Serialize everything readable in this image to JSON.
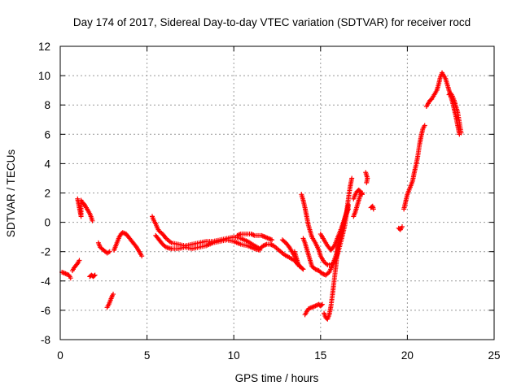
{
  "chart_data": {
    "type": "scatter",
    "title": "Day 174 of 2017, Sidereal Day-to-day VTEC variation (SDTVAR) for receiver rocd",
    "xlabel": "GPS time / hours",
    "ylabel": "SDTVAR / TECUs",
    "xlim": [
      0,
      25
    ],
    "ylim": [
      -8,
      12
    ],
    "xticks": [
      "0",
      "5",
      "10",
      "15",
      "20",
      "25"
    ],
    "yticks": [
      "-8",
      "-6",
      "-4",
      "-2",
      "0",
      "2",
      "4",
      "6",
      "8",
      "10",
      "12"
    ],
    "grid": true,
    "marker": "+",
    "color": "#ff0000",
    "segments": [
      [
        [
          0.1,
          -3.4
        ],
        [
          0.3,
          -3.5
        ],
        [
          0.5,
          -3.6
        ],
        [
          0.6,
          -3.8
        ]
      ],
      [
        [
          0.7,
          -3.3
        ],
        [
          0.8,
          -3.1
        ],
        [
          1.0,
          -2.8
        ],
        [
          1.1,
          -2.6
        ]
      ],
      [
        [
          1.0,
          1.6
        ],
        [
          1.05,
          1.3
        ],
        [
          1.1,
          1.0
        ],
        [
          1.15,
          0.7
        ],
        [
          1.2,
          0.4
        ],
        [
          1.2,
          1.5
        ]
      ],
      [
        [
          1.25,
          1.4
        ],
        [
          1.4,
          1.2
        ],
        [
          1.5,
          1.0
        ],
        [
          1.6,
          0.8
        ],
        [
          1.7,
          0.6
        ],
        [
          1.8,
          0.3
        ],
        [
          1.85,
          0.1
        ]
      ],
      [
        [
          1.7,
          -3.7
        ],
        [
          1.8,
          -3.6
        ],
        [
          1.9,
          -3.7
        ],
        [
          2.0,
          -3.6
        ]
      ],
      [
        [
          2.2,
          -1.4
        ],
        [
          2.3,
          -1.7
        ],
        [
          2.5,
          -1.9
        ],
        [
          2.7,
          -2.1
        ],
        [
          2.85,
          -2.0
        ]
      ],
      [
        [
          2.7,
          -5.8
        ],
        [
          2.8,
          -5.6
        ],
        [
          2.9,
          -5.3
        ],
        [
          3.0,
          -5.0
        ],
        [
          3.05,
          -4.9
        ]
      ],
      [
        [
          3.1,
          -1.9
        ],
        [
          3.2,
          -1.6
        ],
        [
          3.3,
          -1.3
        ],
        [
          3.4,
          -1.0
        ],
        [
          3.5,
          -0.8
        ],
        [
          3.6,
          -0.7
        ],
        [
          3.8,
          -0.8
        ],
        [
          4.0,
          -1.1
        ],
        [
          4.2,
          -1.4
        ],
        [
          4.4,
          -1.7
        ],
        [
          4.6,
          -2.1
        ],
        [
          4.7,
          -2.3
        ]
      ],
      [
        [
          5.3,
          0.4
        ],
        [
          5.4,
          0.1
        ],
        [
          5.5,
          -0.1
        ],
        [
          5.6,
          -0.4
        ],
        [
          5.7,
          -0.6
        ],
        [
          5.9,
          -0.8
        ],
        [
          6.1,
          -1.1
        ],
        [
          6.4,
          -1.4
        ],
        [
          6.8,
          -1.5
        ],
        [
          7.2,
          -1.6
        ],
        [
          7.6,
          -1.5
        ],
        [
          8.0,
          -1.4
        ],
        [
          8.4,
          -1.3
        ],
        [
          8.8,
          -1.3
        ],
        [
          9.2,
          -1.2
        ],
        [
          9.6,
          -1.1
        ],
        [
          10.0,
          -1.0
        ],
        [
          10.4,
          -1.1
        ],
        [
          10.8,
          -1.3
        ],
        [
          11.2,
          -1.6
        ],
        [
          11.5,
          -1.8
        ],
        [
          11.7,
          -1.6
        ],
        [
          11.9,
          -1.5
        ],
        [
          12.1,
          -1.5
        ],
        [
          12.3,
          -1.6
        ],
        [
          12.6,
          -1.9
        ],
        [
          12.9,
          -2.2
        ],
        [
          13.2,
          -2.4
        ],
        [
          13.5,
          -2.6
        ],
        [
          13.7,
          -2.9
        ],
        [
          13.9,
          -3.1
        ],
        [
          14.0,
          -3.2
        ]
      ],
      [
        [
          5.5,
          -0.9
        ],
        [
          5.7,
          -1.2
        ],
        [
          5.9,
          -1.5
        ],
        [
          6.1,
          -1.7
        ],
        [
          6.4,
          -1.8
        ],
        [
          6.8,
          -1.8
        ],
        [
          7.2,
          -1.7
        ],
        [
          7.6,
          -1.8
        ],
        [
          8.0,
          -1.7
        ],
        [
          8.4,
          -1.6
        ],
        [
          8.8,
          -1.4
        ],
        [
          9.2,
          -1.3
        ],
        [
          9.6,
          -1.2
        ],
        [
          10.0,
          -1.3
        ],
        [
          10.4,
          -1.5
        ],
        [
          10.8,
          -1.6
        ],
        [
          11.2,
          -1.8
        ],
        [
          11.5,
          -1.9
        ]
      ],
      [
        [
          10.2,
          -0.9
        ],
        [
          10.4,
          -0.8
        ],
        [
          10.6,
          -0.8
        ],
        [
          10.8,
          -0.8
        ],
        [
          11.0,
          -0.8
        ],
        [
          11.2,
          -0.9
        ],
        [
          11.4,
          -0.9
        ],
        [
          11.6,
          -0.9
        ],
        [
          11.8,
          -1.0
        ],
        [
          12.0,
          -1.1
        ],
        [
          12.2,
          -1.2
        ]
      ],
      [
        [
          12.8,
          -1.2
        ],
        [
          13.0,
          -1.4
        ],
        [
          13.2,
          -1.7
        ],
        [
          13.4,
          -2.1
        ],
        [
          13.6,
          -2.5
        ]
      ],
      [
        [
          13.5,
          -2.0
        ],
        [
          13.6,
          -2.4
        ],
        [
          13.7,
          -2.8
        ],
        [
          13.8,
          -3.0
        ]
      ],
      [
        [
          13.9,
          1.9
        ],
        [
          14.0,
          1.5
        ],
        [
          14.1,
          1.0
        ],
        [
          14.2,
          0.4
        ],
        [
          14.3,
          -0.2
        ],
        [
          14.4,
          -0.6
        ],
        [
          14.5,
          -1.0
        ],
        [
          14.7,
          -1.4
        ],
        [
          14.9,
          -1.9
        ],
        [
          15.0,
          -2.3
        ],
        [
          15.2,
          -2.7
        ],
        [
          15.4,
          -2.9
        ],
        [
          15.6,
          -2.9
        ],
        [
          15.8,
          -2.7
        ],
        [
          16.0,
          -2.1
        ],
        [
          16.2,
          -1.2
        ],
        [
          16.4,
          -0.2
        ],
        [
          16.5,
          0.6
        ],
        [
          16.6,
          1.2
        ]
      ],
      [
        [
          14.0,
          -1.1
        ],
        [
          14.1,
          -1.4
        ],
        [
          14.2,
          -1.8
        ],
        [
          14.3,
          -2.2
        ],
        [
          14.4,
          -2.6
        ],
        [
          14.5,
          -3.0
        ],
        [
          14.7,
          -3.2
        ],
        [
          14.9,
          -3.3
        ],
        [
          15.1,
          -3.5
        ],
        [
          15.3,
          -3.6
        ],
        [
          15.5,
          -3.4
        ],
        [
          15.7,
          -2.9
        ],
        [
          15.9,
          -2.2
        ],
        [
          16.1,
          -1.3
        ],
        [
          16.3,
          -0.3
        ],
        [
          16.5,
          0.7
        ],
        [
          16.6,
          1.6
        ],
        [
          16.7,
          2.4
        ],
        [
          16.8,
          3.0
        ]
      ],
      [
        [
          14.1,
          -6.3
        ],
        [
          14.2,
          -6.1
        ],
        [
          14.3,
          -5.9
        ],
        [
          14.5,
          -5.8
        ],
        [
          14.7,
          -5.7
        ],
        [
          14.9,
          -5.6
        ],
        [
          15.0,
          -5.7
        ],
        [
          15.1,
          -5.6
        ]
      ],
      [
        [
          15.2,
          -6.2
        ],
        [
          15.3,
          -6.5
        ],
        [
          15.4,
          -6.6
        ],
        [
          15.5,
          -6.3
        ],
        [
          15.6,
          -5.7
        ],
        [
          15.7,
          -4.8
        ],
        [
          15.8,
          -3.8
        ],
        [
          15.9,
          -2.8
        ],
        [
          16.0,
          -1.7
        ],
        [
          16.2,
          -0.7
        ],
        [
          16.4,
          0.3
        ],
        [
          16.6,
          1.1
        ]
      ],
      [
        [
          15.0,
          -0.8
        ],
        [
          15.2,
          -1.2
        ],
        [
          15.4,
          -1.6
        ],
        [
          15.6,
          -1.9
        ],
        [
          15.8,
          -1.6
        ],
        [
          16.0,
          -1.0
        ],
        [
          16.2,
          -0.4
        ],
        [
          16.4,
          0.3
        ],
        [
          16.6,
          0.9
        ]
      ],
      [
        [
          16.9,
          0.4
        ],
        [
          17.0,
          0.7
        ],
        [
          17.1,
          1.1
        ],
        [
          17.2,
          1.5
        ],
        [
          17.3,
          1.9
        ],
        [
          17.4,
          2.0
        ]
      ],
      [
        [
          16.9,
          1.6
        ],
        [
          17.0,
          1.9
        ],
        [
          17.1,
          2.1
        ],
        [
          17.2,
          2.2
        ],
        [
          17.3,
          2.1
        ],
        [
          17.4,
          1.9
        ]
      ],
      [
        [
          17.6,
          3.4
        ],
        [
          17.7,
          3.0
        ],
        [
          17.65,
          2.7
        ]
      ],
      [
        [
          17.9,
          1.0
        ],
        [
          18.0,
          1.1
        ],
        [
          18.05,
          0.9
        ]
      ],
      [
        [
          19.5,
          -0.4
        ],
        [
          19.6,
          -0.5
        ],
        [
          19.7,
          -0.3
        ]
      ],
      [
        [
          19.8,
          0.9
        ],
        [
          19.9,
          1.4
        ],
        [
          20.0,
          1.9
        ],
        [
          20.1,
          2.2
        ],
        [
          20.2,
          2.5
        ],
        [
          20.3,
          2.8
        ],
        [
          20.4,
          3.4
        ],
        [
          20.5,
          3.9
        ],
        [
          20.6,
          4.5
        ],
        [
          20.7,
          5.3
        ],
        [
          20.8,
          5.9
        ],
        [
          20.9,
          6.4
        ],
        [
          21.0,
          6.6
        ]
      ],
      [
        [
          21.1,
          7.9
        ],
        [
          21.2,
          8.1
        ],
        [
          21.3,
          8.3
        ],
        [
          21.4,
          8.4
        ],
        [
          21.5,
          8.6
        ],
        [
          21.6,
          8.8
        ],
        [
          21.7,
          9.0
        ],
        [
          21.8,
          9.4
        ],
        [
          21.9,
          9.9
        ],
        [
          22.0,
          10.2
        ],
        [
          22.1,
          10.0
        ],
        [
          22.2,
          9.8
        ],
        [
          22.3,
          9.4
        ],
        [
          22.4,
          9.0
        ],
        [
          22.5,
          8.6
        ],
        [
          22.6,
          8.2
        ],
        [
          22.7,
          7.7
        ],
        [
          22.8,
          7.2
        ],
        [
          22.9,
          6.6
        ],
        [
          23.0,
          6.0
        ]
      ],
      [
        [
          22.4,
          8.7
        ],
        [
          22.5,
          8.8
        ],
        [
          22.6,
          8.6
        ],
        [
          22.7,
          8.3
        ],
        [
          22.8,
          7.9
        ],
        [
          22.9,
          7.5
        ],
        [
          23.0,
          6.8
        ],
        [
          23.1,
          6.1
        ]
      ]
    ]
  }
}
